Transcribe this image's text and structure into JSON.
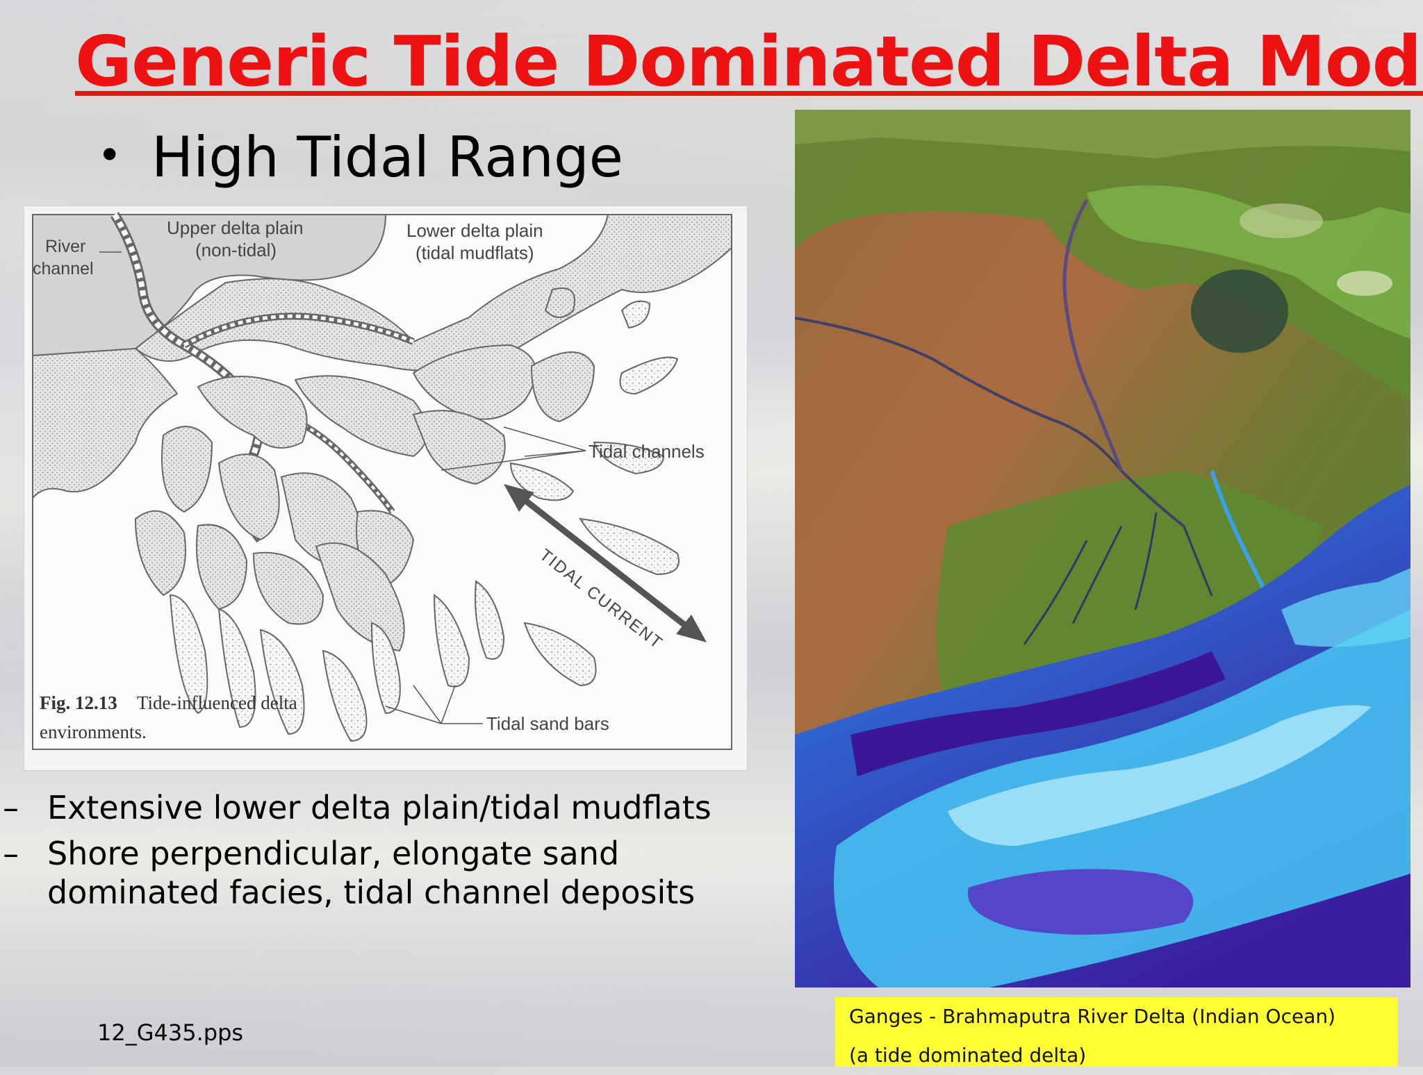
{
  "slide": {
    "title": "Generic Tide Dominated Delta Model",
    "main_bullet": "High Tidal Range",
    "bullet_glyph": "•",
    "sub_bullets": [
      "Extensive lower delta plain/tidal mudflats",
      "Shore perpendicular, elongate sand dominated facies, tidal channel deposits"
    ],
    "dash_glyph": "–",
    "filename": "12_G435.pps",
    "title_color": "#ee1111"
  },
  "figure": {
    "labels": {
      "river_channel_1": "River",
      "river_channel_2": "channel",
      "upper_plain_1": "Upper delta plain",
      "upper_plain_2": "(non-tidal)",
      "lower_plain_1": "Lower delta plain",
      "lower_plain_2": "(tidal mudflats)",
      "tidal_channels": "Tidal channels",
      "tidal_current": "TIDAL CURRENT",
      "tidal_sand_bars": "Tidal sand bars"
    },
    "caption_bold": "Fig. 12.13",
    "caption_rest": "Tide-influenced delta",
    "caption_line2": "environments."
  },
  "satellite": {
    "caption_line1": "Ganges - Brahmaputra River Delta (Indian Ocean)",
    "caption_line2": "(a tide dominated delta)",
    "caption_bg": "#ffff33"
  }
}
